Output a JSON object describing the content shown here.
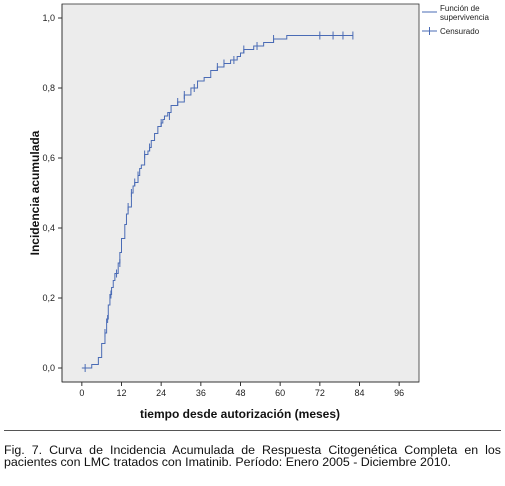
{
  "chart_data": {
    "type": "line",
    "xlabel": "tiempo desde autorización (meses)",
    "ylabel": "Incidencia acumulada",
    "xlim": [
      -6,
      102
    ],
    "ylim": [
      -0.04,
      1.04
    ],
    "xticks": [
      0,
      12,
      24,
      36,
      48,
      60,
      72,
      84,
      96
    ],
    "yticks": [
      0.0,
      0.2,
      0.4,
      0.6,
      0.8,
      1.0
    ],
    "ytick_labels": [
      "0,0",
      "0,2",
      "0,4",
      "0,6",
      "0,8",
      "1,0"
    ],
    "xtick_labels": [
      "0",
      "12",
      "24",
      "36",
      "48",
      "60",
      "72",
      "84",
      "96"
    ],
    "grid": false,
    "legend_position": "top-right",
    "legend": [
      "Función de supervivencia",
      "Censurado"
    ],
    "line_color": "#4a6bb5",
    "plot_background": "#ececec",
    "series": [
      {
        "name": "Función de supervivencia",
        "type": "step",
        "x": [
          0,
          3,
          5,
          6,
          7,
          7.5,
          8,
          8.5,
          9,
          9.5,
          10,
          11,
          11.5,
          12,
          13,
          13.5,
          14,
          15,
          15.5,
          16,
          17,
          17.5,
          18,
          19,
          20,
          20.5,
          21,
          22,
          23,
          24,
          24.5,
          25,
          26,
          27,
          29,
          31,
          33,
          35,
          37,
          39,
          41,
          43,
          45,
          47,
          48,
          49,
          52,
          55,
          58,
          62,
          82
        ],
        "y": [
          0.0,
          0.01,
          0.03,
          0.07,
          0.1,
          0.14,
          0.18,
          0.21,
          0.23,
          0.25,
          0.27,
          0.3,
          0.33,
          0.37,
          0.41,
          0.44,
          0.46,
          0.5,
          0.52,
          0.53,
          0.55,
          0.57,
          0.58,
          0.61,
          0.62,
          0.63,
          0.65,
          0.67,
          0.69,
          0.7,
          0.71,
          0.72,
          0.73,
          0.75,
          0.76,
          0.78,
          0.8,
          0.82,
          0.83,
          0.85,
          0.86,
          0.87,
          0.88,
          0.89,
          0.9,
          0.91,
          0.92,
          0.93,
          0.94,
          0.95,
          0.95
        ]
      },
      {
        "name": "Censurado",
        "type": "censor_marks",
        "x": [
          1,
          7,
          7.8,
          8.8,
          10.5,
          11.5,
          14,
          15,
          16,
          17,
          19,
          20.5,
          24,
          26.5,
          29,
          31,
          34,
          41,
          43,
          46,
          49,
          53,
          58,
          72,
          76,
          79,
          82
        ],
        "y": [
          0.0,
          0.1,
          0.14,
          0.21,
          0.27,
          0.3,
          0.46,
          0.5,
          0.53,
          0.55,
          0.61,
          0.63,
          0.7,
          0.72,
          0.76,
          0.78,
          0.8,
          0.86,
          0.87,
          0.88,
          0.91,
          0.92,
          0.94,
          0.95,
          0.95,
          0.95,
          0.95
        ]
      }
    ]
  },
  "caption": "Fig. 7. Curva de Incidencia Acumulada de Respuesta Citogenética Completa en los pacientes con LMC tratados con Imatinib. Período: Enero 2005 - Diciembre 2010."
}
